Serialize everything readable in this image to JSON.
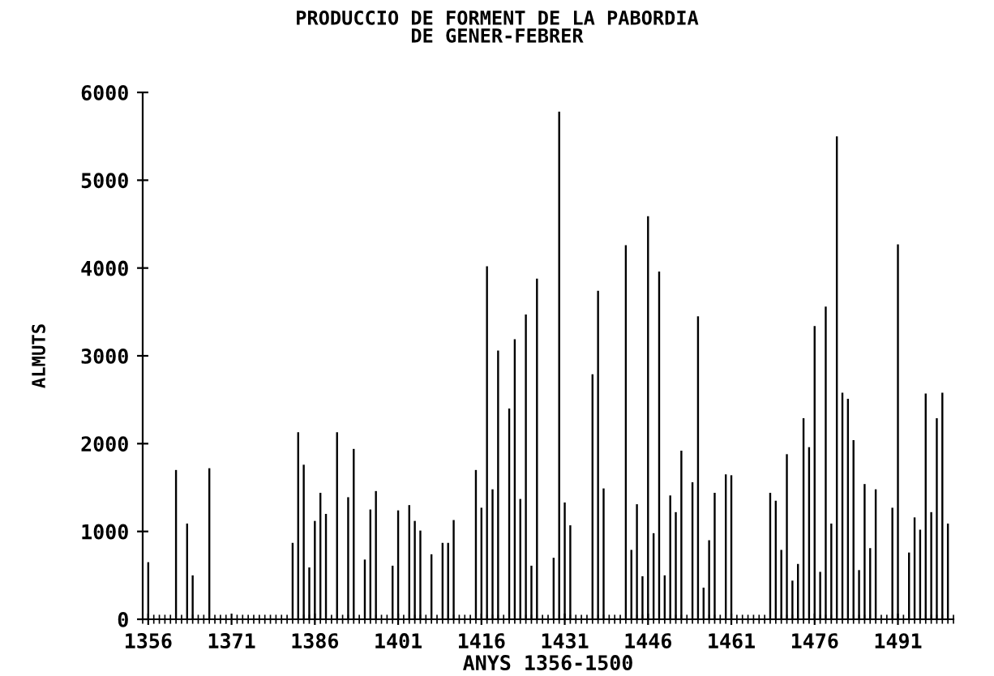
{
  "chart_data": {
    "type": "bar",
    "title": "PRODUCCIO DE FORMENT DE LA PABORDIA\nDE GENER-FEBRER",
    "xlabel": "ANYS 1356-1500",
    "ylabel": "ALMUTS",
    "x": [
      1356,
      1361,
      1363,
      1364,
      1367,
      1382,
      1383,
      1384,
      1385,
      1386,
      1387,
      1388,
      1390,
      1392,
      1393,
      1395,
      1396,
      1397,
      1400,
      1401,
      1403,
      1404,
      1405,
      1407,
      1409,
      1410,
      1411,
      1415,
      1416,
      1417,
      1418,
      1419,
      1421,
      1422,
      1423,
      1424,
      1425,
      1426,
      1429,
      1430,
      1431,
      1432,
      1436,
      1437,
      1438,
      1442,
      1443,
      1444,
      1445,
      1446,
      1447,
      1448,
      1449,
      1450,
      1451,
      1452,
      1454,
      1455,
      1456,
      1457,
      1458,
      1460,
      1461,
      1468,
      1469,
      1470,
      1471,
      1472,
      1473,
      1474,
      1475,
      1476,
      1477,
      1478,
      1479,
      1480,
      1481,
      1482,
      1483,
      1484,
      1485,
      1486,
      1487,
      1490,
      1491,
      1493,
      1494,
      1495,
      1496,
      1497,
      1498,
      1499,
      1500
    ],
    "values": [
      650,
      1700,
      1090,
      500,
      1720,
      870,
      2130,
      1760,
      590,
      1120,
      1440,
      1200,
      2130,
      1390,
      1940,
      680,
      1250,
      1460,
      610,
      1240,
      1300,
      1120,
      1010,
      740,
      870,
      870,
      1130,
      1700,
      1270,
      4020,
      1480,
      3060,
      2400,
      3190,
      1370,
      3470,
      610,
      3880,
      700,
      5780,
      1330,
      1070,
      2790,
      3740,
      1490,
      4260,
      790,
      1310,
      490,
      4590,
      980,
      3960,
      500,
      1410,
      1220,
      1920,
      1560,
      3450,
      360,
      900,
      1440,
      1650,
      1640,
      1440,
      1350,
      790,
      1880,
      440,
      630,
      2290,
      1960,
      3340,
      540,
      3560,
      1090,
      5500,
      2580,
      2510,
      2040,
      560,
      1540,
      810,
      1480,
      1270,
      4270,
      760,
      1160,
      1020,
      2570,
      1220,
      2290,
      2580,
      1090
    ],
    "color": "#000000",
    "xlim": [
      1355,
      1501
    ],
    "xticks": [
      1356,
      1371,
      1386,
      1401,
      1416,
      1431,
      1446,
      1461,
      1476,
      1491
    ],
    "ylim": [
      0,
      6000
    ],
    "yticks": [
      0,
      1000,
      2000,
      3000,
      4000,
      5000,
      6000
    ],
    "grid": false,
    "legend": false
  }
}
